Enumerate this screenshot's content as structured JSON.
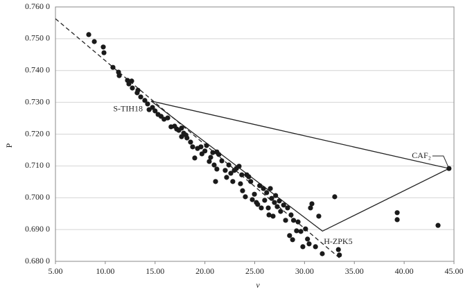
{
  "chart_data": {
    "type": "scatter",
    "x_label": "ν",
    "y_label": "P",
    "xlim": [
      5,
      45
    ],
    "ylim": [
      0.68,
      0.76
    ],
    "xticks": [
      {
        "value": 5,
        "label": "5.00"
      },
      {
        "value": 10,
        "label": "10.00"
      },
      {
        "value": 15,
        "label": "15.00"
      },
      {
        "value": 20,
        "label": "20.00"
      },
      {
        "value": 25,
        "label": "25.00"
      },
      {
        "value": 30,
        "label": "30.00"
      },
      {
        "value": 35,
        "label": "35.00"
      },
      {
        "value": 40,
        "label": "40.00"
      },
      {
        "value": 45,
        "label": "45.00"
      }
    ],
    "yticks": [
      {
        "value": 0.68,
        "label": "0.680 0"
      },
      {
        "value": 0.69,
        "label": "0.690 0"
      },
      {
        "value": 0.7,
        "label": "0.700 0"
      },
      {
        "value": 0.71,
        "label": "0.710 0"
      },
      {
        "value": 0.72,
        "label": "0.720 0"
      },
      {
        "value": 0.73,
        "label": "0.730 0"
      },
      {
        "value": 0.74,
        "label": "0.740 0"
      },
      {
        "value": 0.75,
        "label": "0.750 0"
      },
      {
        "value": 0.76,
        "label": "0.760 0"
      }
    ],
    "grid": true,
    "color": "#1a1a1a",
    "x": [
      8.34,
      8.9,
      9.8,
      9.87,
      10.77,
      11.33,
      11.4,
      12.23,
      12.65,
      12.37,
      12.72,
      13.28,
      13.2,
      13.56,
      13.97,
      14.25,
      14.4,
      14.74,
      15.0,
      15.3,
      15.6,
      15.9,
      16.27,
      16.6,
      16.96,
      17.17,
      17.38,
      17.66,
      17.87,
      17.66,
      18.1,
      18.2,
      18.56,
      18.77,
      18.98,
      19.26,
      19.6,
      19.7,
      20.0,
      20.17,
      20.44,
      20.58,
      20.79,
      20.93,
      21.2,
      21.4,
      21.07,
      21.2,
      21.7,
      22.04,
      22.18,
      22.4,
      22.6,
      22.8,
      22.95,
      23.16,
      23.43,
      23.57,
      23.7,
      23.78,
      24.06,
      24.2,
      24.4,
      24.6,
      24.76,
      24.97,
      25.17,
      25.3,
      25.5,
      25.66,
      25.87,
      26.0,
      26.2,
      26.36,
      26.43,
      26.57,
      26.7,
      26.84,
      26.98,
      27.1,
      27.26,
      27.47,
      27.6,
      27.9,
      28.1,
      28.3,
      28.5,
      28.65,
      28.8,
      28.9,
      29.2,
      29.35,
      29.63,
      29.83,
      30.1,
      30.3,
      30.46,
      30.6,
      30.74,
      31.1,
      31.43,
      31.78,
      33.03,
      33.4,
      33.5,
      39.3,
      39.3,
      43.4,
      44.5
    ],
    "values": [
      0.7513,
      0.7491,
      0.7474,
      0.7456,
      0.741,
      0.7395,
      0.7384,
      0.7369,
      0.7367,
      0.7358,
      0.7345,
      0.7338,
      0.733,
      0.7317,
      0.7306,
      0.7295,
      0.7277,
      0.7284,
      0.7273,
      0.7262,
      0.7256,
      0.7247,
      0.7251,
      0.7223,
      0.7225,
      0.7216,
      0.7212,
      0.7219,
      0.7203,
      0.7192,
      0.7197,
      0.7188,
      0.7175,
      0.716,
      0.7125,
      0.7155,
      0.716,
      0.7138,
      0.7147,
      0.7164,
      0.7114,
      0.7127,
      0.7142,
      0.7103,
      0.7144,
      0.7136,
      0.7051,
      0.709,
      0.7116,
      0.7086,
      0.7064,
      0.7103,
      0.7077,
      0.7051,
      0.7086,
      0.7092,
      0.7099,
      0.7044,
      0.7072,
      0.7022,
      0.7003,
      0.7072,
      0.7066,
      0.7051,
      0.6994,
      0.7011,
      0.6985,
      0.6979,
      0.7038,
      0.6968,
      0.7029,
      0.6992,
      0.7016,
      0.6968,
      0.6946,
      0.7029,
      0.6998,
      0.6942,
      0.6985,
      0.7007,
      0.6972,
      0.699,
      0.6957,
      0.6977,
      0.6929,
      0.6968,
      0.6881,
      0.6946,
      0.6868,
      0.6929,
      0.6896,
      0.6924,
      0.6894,
      0.6846,
      0.6902,
      0.687,
      0.6855,
      0.6968,
      0.6981,
      0.6846,
      0.6942,
      0.6824,
      0.7003,
      0.6837,
      0.682,
      0.6953,
      0.6931,
      0.6913,
      0.7092
    ],
    "trend_line": {
      "x": [
        5,
        33.5
      ],
      "y": [
        0.7563,
        0.6811
      ]
    },
    "annotations": [
      {
        "label": "S-TIH18",
        "x": 14.6,
        "y": 0.7304
      },
      {
        "label": "CAF₂",
        "x": 44.5,
        "y": 0.7092
      },
      {
        "label": "H-ZPK5",
        "x": 31.8,
        "y": 0.6895
      }
    ]
  }
}
